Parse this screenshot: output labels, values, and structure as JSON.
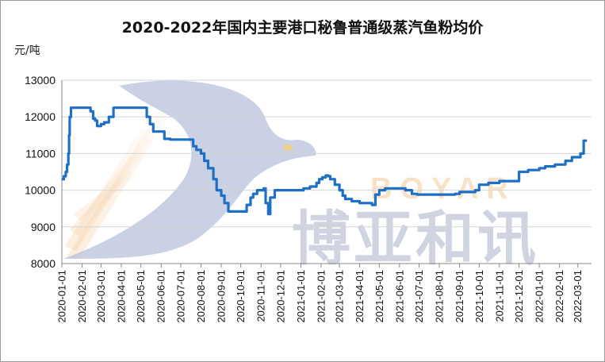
{
  "chart_data": {
    "type": "line",
    "title": "2020-2022年国内主要港口秘鲁普通级蒸汽鱼粉均价",
    "ylabel": "元/吨",
    "xlabel": "",
    "ylim": [
      8000,
      13000
    ],
    "yticks": [
      8000,
      9000,
      10000,
      11000,
      12000,
      13000
    ],
    "xtick_labels": [
      "2020-01-01",
      "2020-02-01",
      "2020-03-01",
      "2020-04-01",
      "2020-05-01",
      "2020-06-01",
      "2020-07-01",
      "2020-08-01",
      "2020-09-01",
      "2020-10-01",
      "2020-11-01",
      "2020-12-01",
      "2021-01-01",
      "2021-02-01",
      "2021-03-01",
      "2021-04-01",
      "2021-05-01",
      "2021-06-01",
      "2021-07-01",
      "2021-08-01",
      "2021-09-01",
      "2021-10-01",
      "2021-11-01",
      "2021-12-01",
      "2022-01-01",
      "2022-02-01",
      "2022-03-01"
    ],
    "grid": "horizontal",
    "line_color": "#1f6fc5",
    "series": [
      {
        "x": [
          "2020-01-01",
          "2020-01-04",
          "2020-01-07",
          "2020-01-09",
          "2020-01-11",
          "2020-01-12",
          "2020-01-13",
          "2020-01-15",
          "2020-02-10",
          "2020-02-14",
          "2020-02-18",
          "2020-02-21",
          "2020-02-24",
          "2020-03-01",
          "2020-03-06",
          "2020-03-13",
          "2020-03-20",
          "2020-04-01",
          "2020-04-15",
          "2020-05-05",
          "2020-05-10",
          "2020-05-15",
          "2020-05-20",
          "2020-06-01",
          "2020-06-06",
          "2020-06-15",
          "2020-07-05",
          "2020-07-20",
          "2020-07-25",
          "2020-08-01",
          "2020-08-06",
          "2020-08-12",
          "2020-08-20",
          "2020-08-25",
          "2020-09-01",
          "2020-09-06",
          "2020-09-12",
          "2020-09-20",
          "2020-10-01",
          "2020-10-10",
          "2020-10-16",
          "2020-10-20",
          "2020-10-26",
          "2020-11-05",
          "2020-11-08",
          "2020-11-12",
          "2020-11-15",
          "2020-11-22",
          "2020-12-01",
          "2020-12-10",
          "2020-12-20",
          "2021-01-05",
          "2021-01-15",
          "2021-01-25",
          "2021-01-29",
          "2021-02-03",
          "2021-02-08",
          "2021-02-12",
          "2021-02-15",
          "2021-02-22",
          "2021-03-01",
          "2021-03-06",
          "2021-03-10",
          "2021-03-15",
          "2021-03-20",
          "2021-04-01",
          "2021-04-20",
          "2021-04-25",
          "2021-05-01",
          "2021-05-10",
          "2021-06-10",
          "2021-06-20",
          "2021-06-28",
          "2021-07-05",
          "2021-07-20",
          "2021-08-01",
          "2021-08-10",
          "2021-08-25",
          "2021-09-01",
          "2021-09-15",
          "2021-09-25",
          "2021-10-01",
          "2021-10-15",
          "2021-11-01",
          "2021-11-15",
          "2021-12-01",
          "2021-12-15",
          "2021-12-25",
          "2022-01-01",
          "2022-01-10",
          "2022-01-25",
          "2022-02-01",
          "2022-02-10",
          "2022-02-20",
          "2022-03-05",
          "2022-03-10",
          "2022-03-15"
        ],
        "values": [
          10300,
          10380,
          10500,
          10700,
          11000,
          11500,
          12000,
          12250,
          12250,
          12150,
          11950,
          11900,
          11750,
          11800,
          11850,
          12000,
          12250,
          12250,
          12250,
          12250,
          12000,
          11800,
          11600,
          11600,
          11400,
          11380,
          11380,
          11200,
          11100,
          11000,
          10800,
          10600,
          10300,
          10000,
          9850,
          9650,
          9420,
          9420,
          9420,
          9600,
          9800,
          9900,
          10000,
          10050,
          9650,
          9350,
          9800,
          10000,
          10000,
          10000,
          10000,
          10050,
          10100,
          10200,
          10300,
          10350,
          10400,
          10380,
          10300,
          10150,
          10000,
          9850,
          9760,
          9760,
          9700,
          9650,
          9600,
          9880,
          10000,
          10050,
          10000,
          9900,
          9880,
          9880,
          9880,
          9880,
          9880,
          9900,
          9950,
          9950,
          10000,
          10150,
          10200,
          10250,
          10250,
          10500,
          10550,
          10550,
          10600,
          10650,
          10700,
          10700,
          10800,
          10900,
          11000,
          11350,
          11350
        ]
      }
    ]
  },
  "watermark": {
    "cn_text": "博亚和讯",
    "en_text": "BOYAR"
  }
}
